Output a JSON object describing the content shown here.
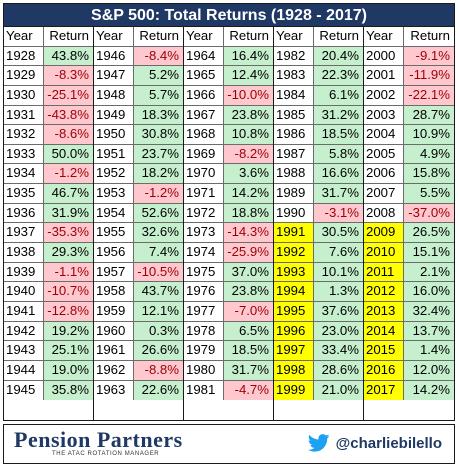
{
  "title": "S&P 500: Total Returns (1928 - 2017)",
  "headers": {
    "year": "Year",
    "return": "Return"
  },
  "columns": [
    [
      {
        "year": "1928",
        "ret": "43.8%",
        "sign": "pos"
      },
      {
        "year": "1929",
        "ret": "-8.3%",
        "sign": "neg"
      },
      {
        "year": "1930",
        "ret": "-25.1%",
        "sign": "neg"
      },
      {
        "year": "1931",
        "ret": "-43.8%",
        "sign": "neg"
      },
      {
        "year": "1932",
        "ret": "-8.6%",
        "sign": "neg"
      },
      {
        "year": "1933",
        "ret": "50.0%",
        "sign": "pos"
      },
      {
        "year": "1934",
        "ret": "-1.2%",
        "sign": "neg"
      },
      {
        "year": "1935",
        "ret": "46.7%",
        "sign": "pos"
      },
      {
        "year": "1936",
        "ret": "31.9%",
        "sign": "pos"
      },
      {
        "year": "1937",
        "ret": "-35.3%",
        "sign": "neg"
      },
      {
        "year": "1938",
        "ret": "29.3%",
        "sign": "pos"
      },
      {
        "year": "1939",
        "ret": "-1.1%",
        "sign": "neg"
      },
      {
        "year": "1940",
        "ret": "-10.7%",
        "sign": "neg"
      },
      {
        "year": "1941",
        "ret": "-12.8%",
        "sign": "neg"
      },
      {
        "year": "1942",
        "ret": "19.2%",
        "sign": "pos"
      },
      {
        "year": "1943",
        "ret": "25.1%",
        "sign": "pos"
      },
      {
        "year": "1944",
        "ret": "19.0%",
        "sign": "pos"
      },
      {
        "year": "1945",
        "ret": "35.8%",
        "sign": "pos"
      }
    ],
    [
      {
        "year": "1946",
        "ret": "-8.4%",
        "sign": "neg"
      },
      {
        "year": "1947",
        "ret": "5.2%",
        "sign": "pos"
      },
      {
        "year": "1948",
        "ret": "5.7%",
        "sign": "pos"
      },
      {
        "year": "1949",
        "ret": "18.3%",
        "sign": "pos"
      },
      {
        "year": "1950",
        "ret": "30.8%",
        "sign": "pos"
      },
      {
        "year": "1951",
        "ret": "23.7%",
        "sign": "pos"
      },
      {
        "year": "1952",
        "ret": "18.2%",
        "sign": "pos"
      },
      {
        "year": "1953",
        "ret": "-1.2%",
        "sign": "neg"
      },
      {
        "year": "1954",
        "ret": "52.6%",
        "sign": "pos"
      },
      {
        "year": "1955",
        "ret": "32.6%",
        "sign": "pos"
      },
      {
        "year": "1956",
        "ret": "7.4%",
        "sign": "pos"
      },
      {
        "year": "1957",
        "ret": "-10.5%",
        "sign": "neg"
      },
      {
        "year": "1958",
        "ret": "43.7%",
        "sign": "pos"
      },
      {
        "year": "1959",
        "ret": "12.1%",
        "sign": "pos"
      },
      {
        "year": "1960",
        "ret": "0.3%",
        "sign": "pos"
      },
      {
        "year": "1961",
        "ret": "26.6%",
        "sign": "pos"
      },
      {
        "year": "1962",
        "ret": "-8.8%",
        "sign": "neg"
      },
      {
        "year": "1963",
        "ret": "22.6%",
        "sign": "pos"
      }
    ],
    [
      {
        "year": "1964",
        "ret": "16.4%",
        "sign": "pos"
      },
      {
        "year": "1965",
        "ret": "12.4%",
        "sign": "pos"
      },
      {
        "year": "1966",
        "ret": "-10.0%",
        "sign": "neg"
      },
      {
        "year": "1967",
        "ret": "23.8%",
        "sign": "pos"
      },
      {
        "year": "1968",
        "ret": "10.8%",
        "sign": "pos"
      },
      {
        "year": "1969",
        "ret": "-8.2%",
        "sign": "neg"
      },
      {
        "year": "1970",
        "ret": "3.6%",
        "sign": "pos"
      },
      {
        "year": "1971",
        "ret": "14.2%",
        "sign": "pos"
      },
      {
        "year": "1972",
        "ret": "18.8%",
        "sign": "pos"
      },
      {
        "year": "1973",
        "ret": "-14.3%",
        "sign": "neg"
      },
      {
        "year": "1974",
        "ret": "-25.9%",
        "sign": "neg"
      },
      {
        "year": "1975",
        "ret": "37.0%",
        "sign": "pos"
      },
      {
        "year": "1976",
        "ret": "23.8%",
        "sign": "pos"
      },
      {
        "year": "1977",
        "ret": "-7.0%",
        "sign": "neg"
      },
      {
        "year": "1978",
        "ret": "6.5%",
        "sign": "pos"
      },
      {
        "year": "1979",
        "ret": "18.5%",
        "sign": "pos"
      },
      {
        "year": "1980",
        "ret": "31.7%",
        "sign": "pos"
      },
      {
        "year": "1981",
        "ret": "-4.7%",
        "sign": "neg"
      }
    ],
    [
      {
        "year": "1982",
        "ret": "20.4%",
        "sign": "pos"
      },
      {
        "year": "1983",
        "ret": "22.3%",
        "sign": "pos"
      },
      {
        "year": "1984",
        "ret": "6.1%",
        "sign": "pos"
      },
      {
        "year": "1985",
        "ret": "31.2%",
        "sign": "pos"
      },
      {
        "year": "1986",
        "ret": "18.5%",
        "sign": "pos"
      },
      {
        "year": "1987",
        "ret": "5.8%",
        "sign": "pos"
      },
      {
        "year": "1988",
        "ret": "16.6%",
        "sign": "pos"
      },
      {
        "year": "1989",
        "ret": "31.7%",
        "sign": "pos"
      },
      {
        "year": "1990",
        "ret": "-3.1%",
        "sign": "neg"
      },
      {
        "year": "1991",
        "ret": "30.5%",
        "sign": "pos",
        "highlight": true
      },
      {
        "year": "1992",
        "ret": "7.6%",
        "sign": "pos",
        "highlight": true
      },
      {
        "year": "1993",
        "ret": "10.1%",
        "sign": "pos",
        "highlight": true
      },
      {
        "year": "1994",
        "ret": "1.3%",
        "sign": "pos",
        "highlight": true
      },
      {
        "year": "1995",
        "ret": "37.6%",
        "sign": "pos",
        "highlight": true
      },
      {
        "year": "1996",
        "ret": "23.0%",
        "sign": "pos",
        "highlight": true
      },
      {
        "year": "1997",
        "ret": "33.4%",
        "sign": "pos",
        "highlight": true
      },
      {
        "year": "1998",
        "ret": "28.6%",
        "sign": "pos",
        "highlight": true
      },
      {
        "year": "1999",
        "ret": "21.0%",
        "sign": "pos",
        "highlight": true
      }
    ],
    [
      {
        "year": "2000",
        "ret": "-9.1%",
        "sign": "neg"
      },
      {
        "year": "2001",
        "ret": "-11.9%",
        "sign": "neg"
      },
      {
        "year": "2002",
        "ret": "-22.1%",
        "sign": "neg"
      },
      {
        "year": "2003",
        "ret": "28.7%",
        "sign": "pos"
      },
      {
        "year": "2004",
        "ret": "10.9%",
        "sign": "pos"
      },
      {
        "year": "2005",
        "ret": "4.9%",
        "sign": "pos"
      },
      {
        "year": "2006",
        "ret": "15.8%",
        "sign": "pos"
      },
      {
        "year": "2007",
        "ret": "5.5%",
        "sign": "pos"
      },
      {
        "year": "2008",
        "ret": "-37.0%",
        "sign": "neg"
      },
      {
        "year": "2009",
        "ret": "26.5%",
        "sign": "pos",
        "highlight": true
      },
      {
        "year": "2010",
        "ret": "15.1%",
        "sign": "pos",
        "highlight": true
      },
      {
        "year": "2011",
        "ret": "2.1%",
        "sign": "pos",
        "highlight": true
      },
      {
        "year": "2012",
        "ret": "16.0%",
        "sign": "pos",
        "highlight": true
      },
      {
        "year": "2013",
        "ret": "32.4%",
        "sign": "pos",
        "highlight": true
      },
      {
        "year": "2014",
        "ret": "13.7%",
        "sign": "pos",
        "highlight": true
      },
      {
        "year": "2015",
        "ret": "1.4%",
        "sign": "pos",
        "highlight": true
      },
      {
        "year": "2016",
        "ret": "12.0%",
        "sign": "pos",
        "highlight": true
      },
      {
        "year": "2017",
        "ret": "14.2%",
        "sign": "pos",
        "highlight": true
      }
    ]
  ],
  "colors": {
    "title_bg": "#1f3864",
    "positive_bg": "#c6efce",
    "negative_bg": "#ffc7ce",
    "negative_text": "#9c0006",
    "highlight": "#ffff00",
    "brand": "#1f3864",
    "twitter": "#1da1f2"
  },
  "footer": {
    "brand": "Pension Partners",
    "tagline": "THE ATAC ROTATION MANAGER",
    "twitter_icon": "twitter-bird-icon",
    "handle": "@charliebilello"
  }
}
